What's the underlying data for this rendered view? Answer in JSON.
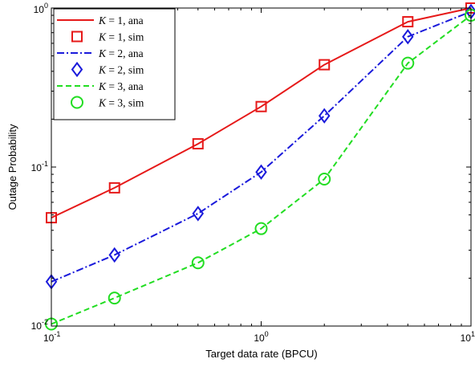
{
  "chart_data": {
    "type": "line",
    "xlabel": "Target data rate (BPCU)",
    "ylabel": "Outage Probability",
    "xscale": "log",
    "yscale": "log",
    "xlim": [
      0.1,
      10
    ],
    "ylim": [
      0.01,
      1
    ],
    "grid": false,
    "legend_position": "top-left",
    "x_ticks": [
      {
        "base": "10",
        "exp": "-1"
      },
      {
        "base": "10",
        "exp": "0"
      },
      {
        "base": "10",
        "exp": "1"
      }
    ],
    "y_ticks": [
      {
        "base": "10",
        "exp": "-2"
      },
      {
        "base": "10",
        "exp": "-1"
      },
      {
        "base": "10",
        "exp": "0"
      }
    ],
    "series": [
      {
        "name": "K = 1, ana",
        "style": "solid",
        "marker": "none",
        "color": "#e61919",
        "x": [
          0.1,
          0.2,
          0.5,
          1,
          2,
          5,
          10
        ],
        "y": [
          0.048,
          0.074,
          0.14,
          0.24,
          0.44,
          0.82,
          1.0
        ]
      },
      {
        "name": "K = 1, sim",
        "style": "none",
        "marker": "square",
        "color": "#e61919",
        "x": [
          0.1,
          0.2,
          0.5,
          1,
          2,
          5,
          10
        ],
        "y": [
          0.048,
          0.074,
          0.14,
          0.24,
          0.44,
          0.82,
          1.0
        ]
      },
      {
        "name": "K = 2, ana",
        "style": "dashdot",
        "marker": "none",
        "color": "#1a1adb",
        "x": [
          0.1,
          0.2,
          0.5,
          1,
          2,
          5,
          10
        ],
        "y": [
          0.019,
          0.028,
          0.051,
          0.093,
          0.21,
          0.66,
          0.95
        ]
      },
      {
        "name": "K = 2, sim",
        "style": "none",
        "marker": "diamond",
        "color": "#1a1adb",
        "x": [
          0.1,
          0.2,
          0.5,
          1,
          2,
          5,
          10
        ],
        "y": [
          0.019,
          0.028,
          0.051,
          0.093,
          0.21,
          0.66,
          0.95
        ]
      },
      {
        "name": "K = 3, ana",
        "style": "dashed",
        "marker": "none",
        "color": "#22dd22",
        "x": [
          0.1,
          0.2,
          0.5,
          1,
          2,
          5,
          10
        ],
        "y": [
          0.0103,
          0.015,
          0.025,
          0.041,
          0.084,
          0.45,
          0.9
        ]
      },
      {
        "name": "K = 3, sim",
        "style": "none",
        "marker": "circle",
        "color": "#22dd22",
        "x": [
          0.1,
          0.2,
          0.5,
          1,
          2,
          5,
          10
        ],
        "y": [
          0.0103,
          0.015,
          0.025,
          0.041,
          0.084,
          0.45,
          0.9
        ]
      }
    ],
    "legend": [
      {
        "k": "K",
        "rest": " = 1, ana"
      },
      {
        "k": "K",
        "rest": " = 1, sim"
      },
      {
        "k": "K",
        "rest": " = 2, ana"
      },
      {
        "k": "K",
        "rest": " = 2, sim"
      },
      {
        "k": "K",
        "rest": " = 3, ana"
      },
      {
        "k": "K",
        "rest": " = 3, sim"
      }
    ]
  }
}
